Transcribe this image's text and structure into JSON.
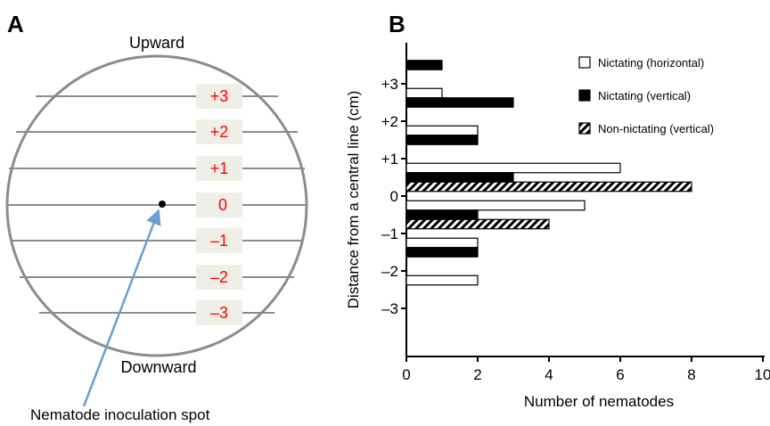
{
  "panel_a": {
    "letter": "A",
    "top_label": "Upward",
    "bottom_label": "Downward",
    "callout": "Nematode inoculation spot",
    "line_labels": [
      "+3",
      "+2",
      "+1",
      "0",
      "–1",
      "–2",
      "–3"
    ],
    "label_color": "#ff0000",
    "label_bg": "#efefe7",
    "circle_color": "#8c8c8c",
    "arrow_color": "#6a9fd4"
  },
  "panel_b": {
    "letter": "B",
    "ylabel": "Distance from a central line (cm)",
    "xlabel": "Number of nematodes"
  },
  "chart_data": {
    "type": "bar",
    "orientation": "horizontal",
    "xlabel": "Number of nematodes",
    "ylabel": "Distance from a central line (cm)",
    "xlim": [
      0,
      10
    ],
    "xticks": [
      "0",
      "2",
      "4",
      "6",
      "8",
      "10"
    ],
    "ylim": [
      -4.2,
      4.2
    ],
    "yticks": [
      {
        "value": 3,
        "label": "+3"
      },
      {
        "value": 2,
        "label": "+2"
      },
      {
        "value": 1,
        "label": "+1"
      },
      {
        "value": 0,
        "label": "0"
      },
      {
        "value": -1,
        "label": "–1"
      },
      {
        "value": -2,
        "label": "–2"
      },
      {
        "value": -3,
        "label": "–3"
      }
    ],
    "grid": false,
    "legend": "top-right",
    "series": [
      {
        "name": "Nictating (horizontal)",
        "fill": "white",
        "points": [
          {
            "y": 2.75,
            "value": 1
          },
          {
            "y": 1.75,
            "value": 2
          },
          {
            "y": 0.75,
            "value": 6
          },
          {
            "y": -0.25,
            "value": 5
          },
          {
            "y": -1.25,
            "value": 2
          },
          {
            "y": -2.25,
            "value": 2
          }
        ]
      },
      {
        "name": "Nictating (vertical)",
        "fill": "black",
        "points": [
          {
            "y": 3.5,
            "value": 1
          },
          {
            "y": 2.5,
            "value": 3
          },
          {
            "y": 1.5,
            "value": 2
          },
          {
            "y": 0.5,
            "value": 3
          },
          {
            "y": -0.5,
            "value": 2
          },
          {
            "y": -1.5,
            "value": 2
          }
        ]
      },
      {
        "name": "Non-nictating (vertical)",
        "fill": "hatch",
        "points": [
          {
            "y": 0.25,
            "value": 8
          },
          {
            "y": -0.75,
            "value": 4
          }
        ]
      }
    ]
  }
}
